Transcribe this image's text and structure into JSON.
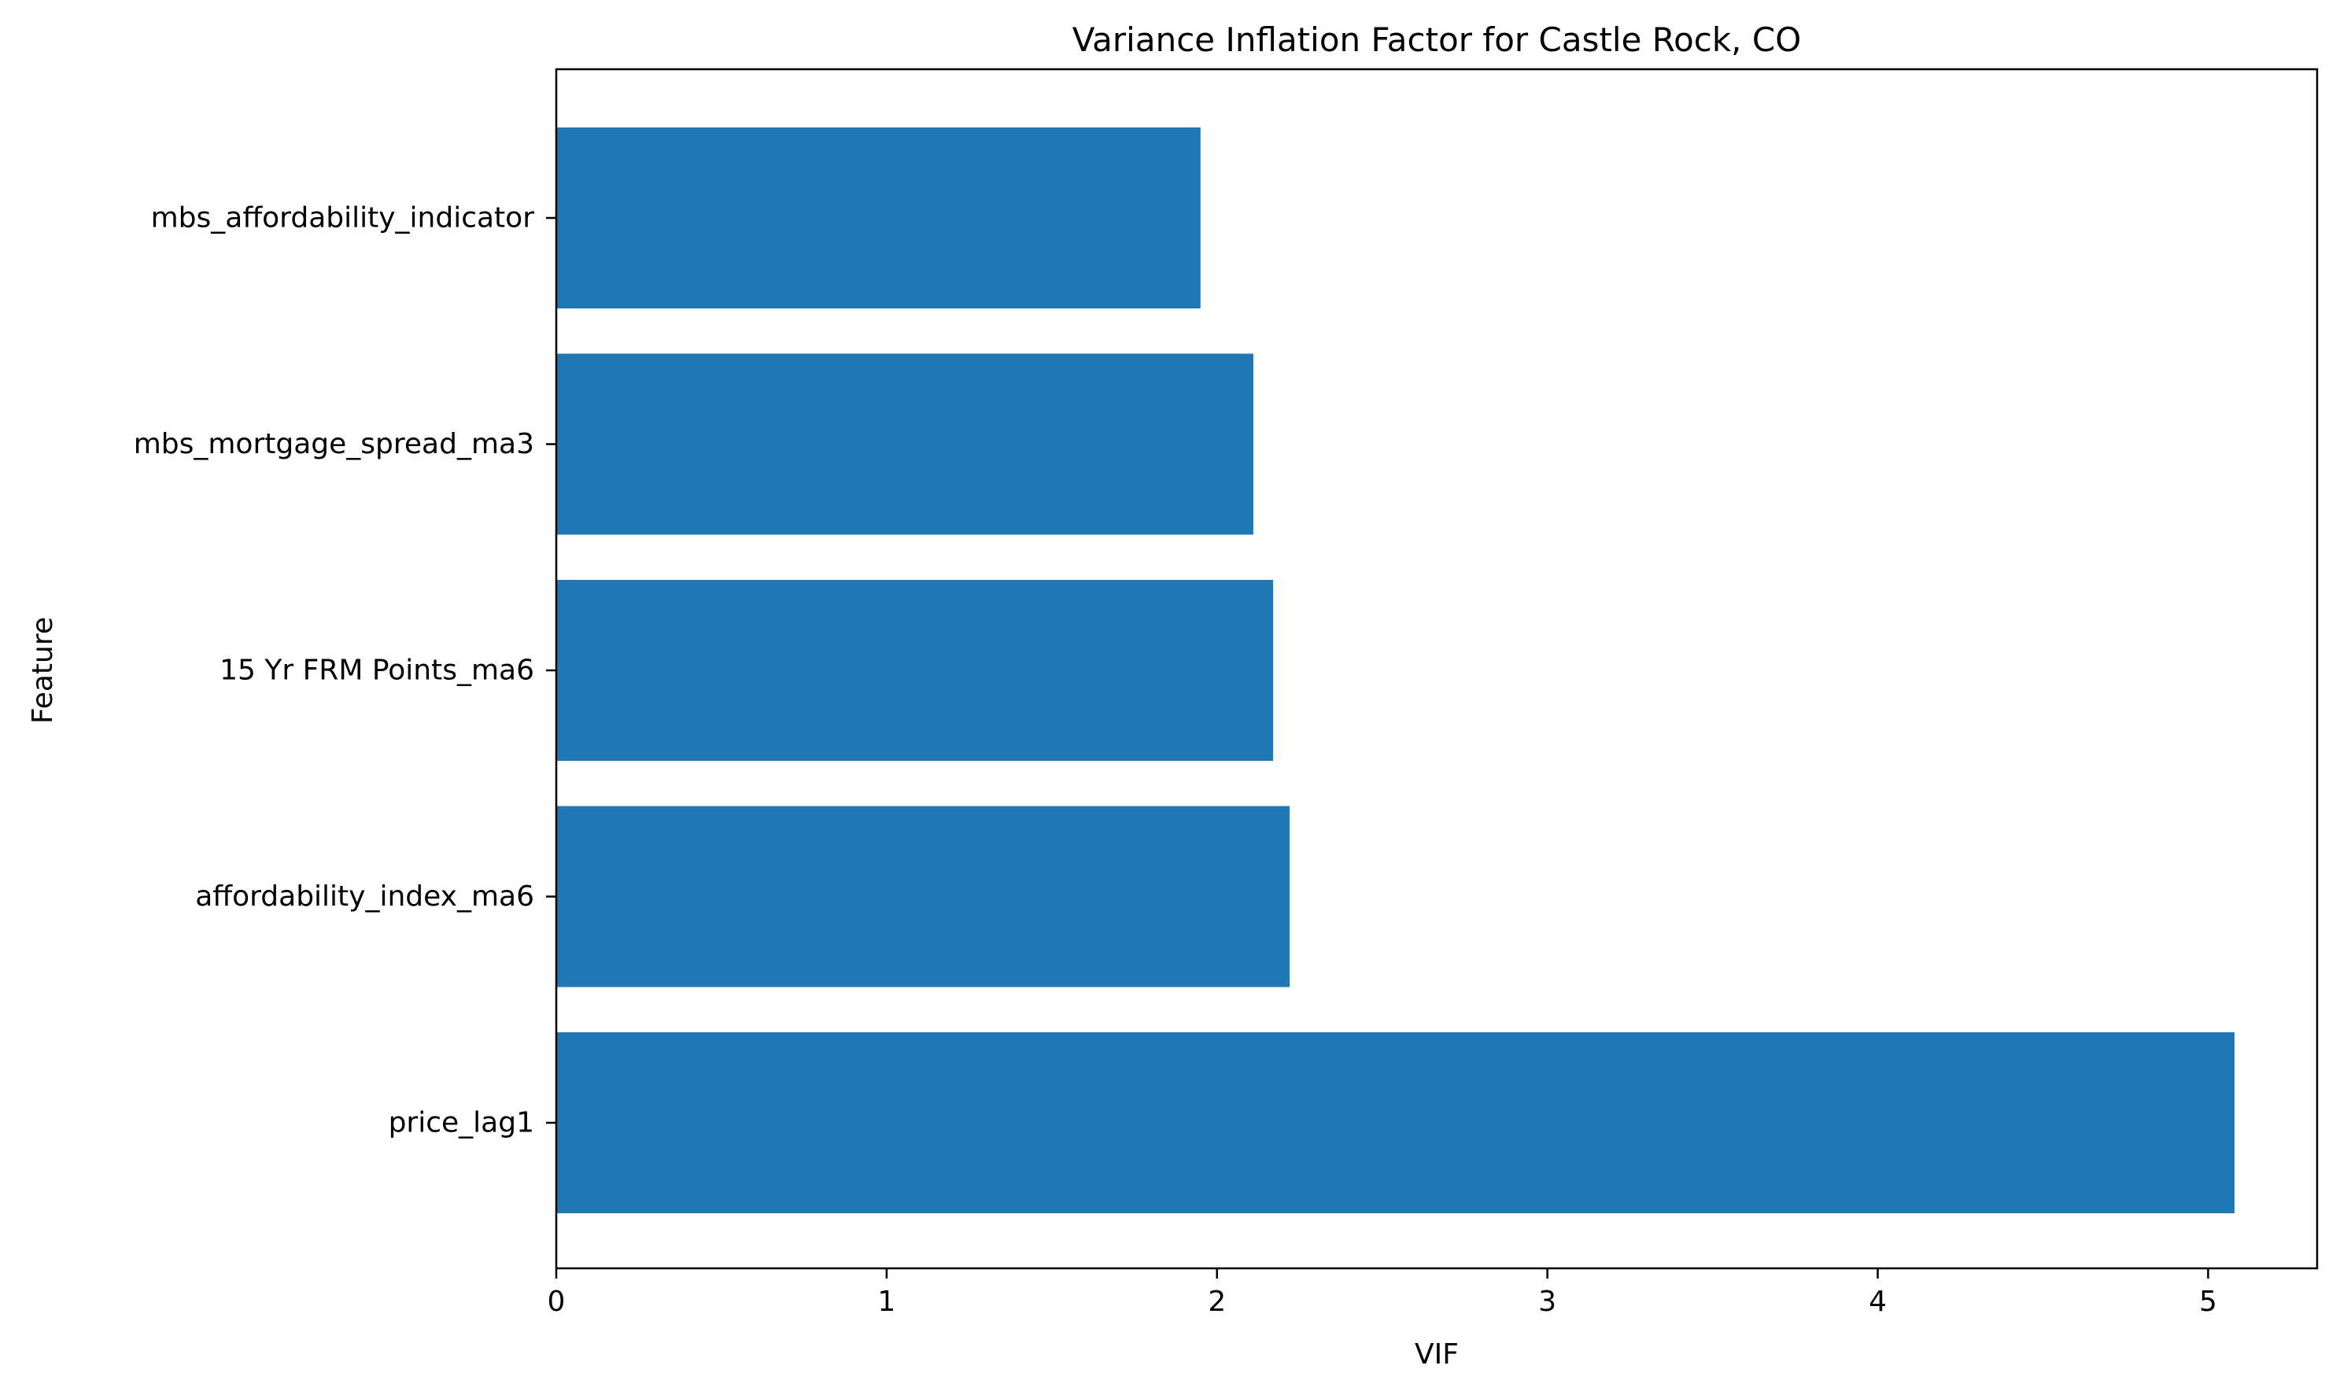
{
  "colors": {
    "bar": "#1f77b4",
    "axis": "#000000",
    "background": "#ffffff"
  },
  "chart_data": {
    "type": "bar",
    "orientation": "horizontal",
    "title": "Variance Inflation Factor for Castle Rock, CO",
    "xlabel": "VIF",
    "ylabel": "Feature",
    "categories": [
      "mbs_affordability_indicator",
      "mbs_mortgage_spread_ma3",
      "15 Yr FRM Points_ma6",
      "affordability_index_ma6",
      "price_lag1"
    ],
    "values": [
      1.95,
      2.11,
      2.17,
      2.22,
      5.08
    ],
    "xlim": [
      0,
      5.33
    ],
    "xticks": [
      0,
      1,
      2,
      3,
      4,
      5
    ],
    "xtick_labels": [
      "0",
      "1",
      "2",
      "3",
      "4",
      "5"
    ],
    "grid": false,
    "legend": "none"
  }
}
